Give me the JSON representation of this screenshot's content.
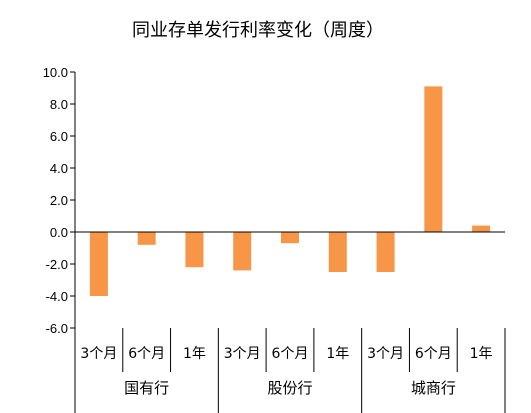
{
  "chart_data": {
    "type": "bar",
    "title": "同业存单发行利率变化（周度）",
    "xlabel": "",
    "ylabel": "",
    "ylim": [
      -6,
      10
    ],
    "y_ticks": [
      "10.0",
      "8.0",
      "6.0",
      "4.0",
      "2.0",
      "0.0",
      "-2.0",
      "-4.0",
      "-6.0"
    ],
    "grid": false,
    "legend": "none",
    "bar_color": "#F79646",
    "groups": [
      {
        "label": "国有行",
        "categories": [
          "3个月",
          "6个月",
          "1年"
        ],
        "values": [
          -4.0,
          -0.8,
          -2.2
        ]
      },
      {
        "label": "股份行",
        "categories": [
          "3个月",
          "6个月",
          "1年"
        ],
        "values": [
          -2.4,
          -0.7,
          -2.5
        ]
      },
      {
        "label": "城商行",
        "categories": [
          "3个月",
          "6个月",
          "1年"
        ],
        "values": [
          -2.5,
          9.1,
          0.4
        ]
      }
    ]
  }
}
